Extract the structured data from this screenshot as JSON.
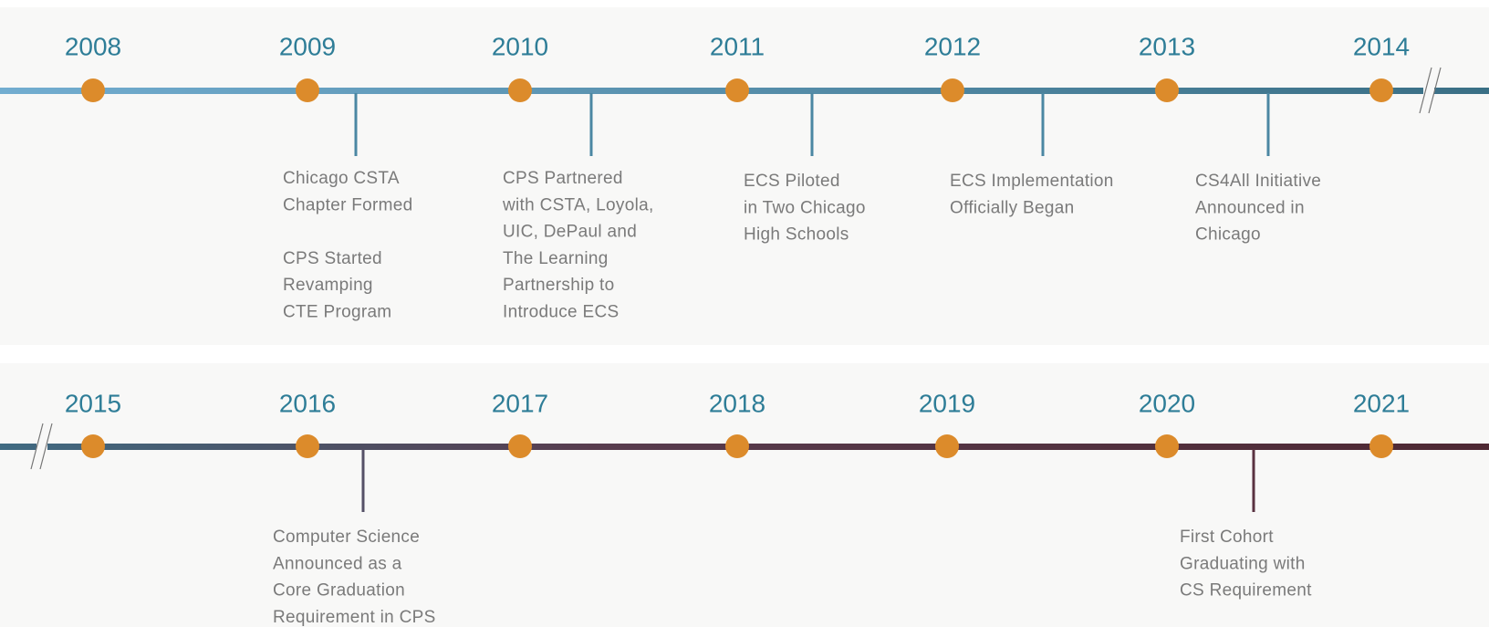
{
  "rows": [
    {
      "years": [
        "2008",
        "2009",
        "2010",
        "2011",
        "2012",
        "2013",
        "2014"
      ],
      "events": [
        {
          "blocks": [
            [
              "Chicago CSTA",
              "Chapter Formed"
            ],
            [
              "CPS Started",
              "Revamping",
              "CTE Program"
            ]
          ]
        },
        {
          "blocks": [
            [
              "CPS Partnered",
              "with CSTA, Loyola,",
              "UIC, DePaul and",
              "The Learning",
              "Partnership to",
              "Introduce ECS"
            ]
          ]
        },
        {
          "blocks": [
            [
              "ECS Piloted",
              "in Two Chicago",
              "High Schools"
            ]
          ]
        },
        {
          "blocks": [
            [
              "ECS Implementation",
              "Officially Began"
            ]
          ]
        },
        {
          "blocks": [
            [
              "CS4All Initiative",
              "Announced in",
              "Chicago"
            ]
          ]
        }
      ]
    },
    {
      "years": [
        "2015",
        "2016",
        "2017",
        "2018",
        "2019",
        "2020",
        "2021"
      ],
      "events": [
        {
          "blocks": [
            [
              "Computer Science",
              "Announced as a",
              "Core Graduation",
              "Requirement in CPS"
            ]
          ]
        },
        {
          "blocks": [
            [
              "First Cohort",
              "Graduating with",
              "CS Requirement"
            ]
          ]
        }
      ]
    }
  ]
}
